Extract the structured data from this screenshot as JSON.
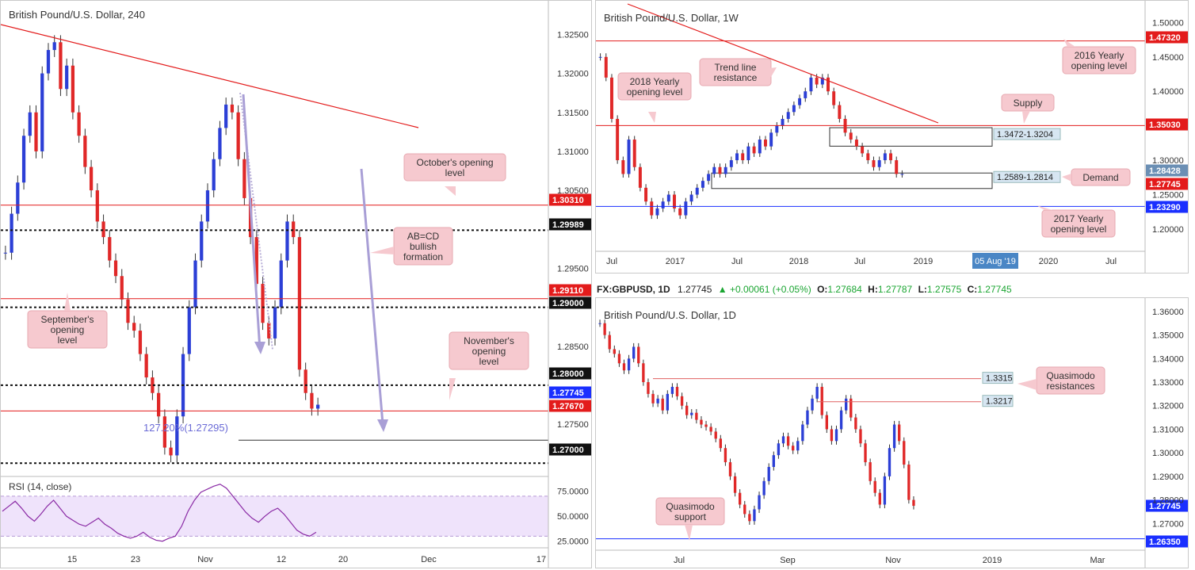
{
  "panels": {
    "left": {
      "title": "British Pound/U.S. Dollar, 240",
      "x_ticks": [
        "15",
        "23",
        "Nov",
        "12",
        "20",
        "Dec",
        "17"
      ],
      "y_ticks": [
        "1.32500",
        "1.32000",
        "1.31500",
        "1.31000",
        "1.30500",
        "1.29500",
        "1.28500",
        "1.27500"
      ],
      "price_tags": [
        {
          "label": "1.30310",
          "color": "#e31b1b"
        },
        {
          "label": "1.29989",
          "color": "#111111"
        },
        {
          "label": "1.29110",
          "color": "#e31b1b"
        },
        {
          "label": "1.29000",
          "color": "#111111"
        },
        {
          "label": "1.28000",
          "color": "#111111"
        },
        {
          "label": "1.27745",
          "color": "#1a2fff"
        },
        {
          "label": "1.27670",
          "color": "#e31b1b"
        },
        {
          "label": "1.27000",
          "color": "#111111"
        }
      ],
      "annotations": {
        "octobers_opening": "October's opening level",
        "abcd": "AB=CD bullish formation",
        "septembers_opening": "September's opening level",
        "novembers_opening": "November's opening level",
        "fib_label": "127.20%(1.27295)"
      },
      "rsi": {
        "label": "RSI (14, close)",
        "ticks": [
          "75.0000",
          "50.0000",
          "25.0000"
        ]
      }
    },
    "weekly": {
      "title": "British Pound/U.S. Dollar, 1W",
      "x_ticks": [
        "Jul",
        "2017",
        "Jul",
        "2018",
        "Jul",
        "2019",
        "2020",
        "Jul"
      ],
      "x_highlight": "05 Aug '19",
      "y_ticks": [
        "1.50000",
        "1.45000",
        "1.40000",
        "1.30000",
        "1.25000",
        "1.20000"
      ],
      "price_tags": [
        {
          "label": "1.47320",
          "color": "#e31b1b"
        },
        {
          "label": "1.35030",
          "color": "#e31b1b"
        },
        {
          "label": "1.28428",
          "color": "#6b8fb4"
        },
        {
          "label": "1.27745",
          "color": "#e31b1b"
        },
        {
          "label": "1.23290",
          "color": "#1a2fff"
        }
      ],
      "zones": {
        "supply": "1.3472-1.3204",
        "demand": "1.2589-1.2814"
      },
      "annotations": {
        "trend": "Trend line resistance",
        "y2018": "2018 Yearly opening level",
        "y2016": "2016 Yearly opening level",
        "supply": "Supply",
        "demand": "Demand",
        "y2017": "2017 Yearly opening level"
      }
    },
    "daily": {
      "header": {
        "symbol": "FX:GBPUSD, 1D",
        "last": "1.27745",
        "change": "▲ +0.00061 (+0.05%)",
        "o_label": "O:",
        "o": "1.27684",
        "h_label": "H:",
        "h": "1.27787",
        "l_label": "L:",
        "l": "1.27575",
        "c_label": "C:",
        "c": "1.27745"
      },
      "title": "British Pound/U.S. Dollar, 1D",
      "x_ticks": [
        "Jul",
        "Sep",
        "Nov",
        "2019",
        "Mar"
      ],
      "y_ticks": [
        "1.36000",
        "1.35000",
        "1.34000",
        "1.33000",
        "1.32000",
        "1.31000",
        "1.30000",
        "1.29000",
        "1.28000",
        "1.27000"
      ],
      "price_tags": [
        {
          "label": "1.27745",
          "color": "#1a2fff"
        },
        {
          "label": "1.26350",
          "color": "#1a2fff"
        }
      ],
      "line_labels": {
        "upper": "1.3315",
        "lower": "1.3217"
      },
      "annotations": {
        "qm_res": "Quasimodo resistances",
        "qm_sup": "Quasimodo support"
      }
    }
  },
  "chart_data": [
    {
      "type": "candlestick",
      "title": "British Pound/U.S. Dollar, 240",
      "ylim": [
        1.2685,
        1.3285
      ],
      "close_series": [
        1.297,
        1.302,
        1.306,
        1.312,
        1.315,
        1.31,
        1.32,
        1.323,
        1.324,
        1.318,
        1.321,
        1.315,
        1.312,
        1.308,
        1.305,
        1.301,
        1.299,
        1.296,
        1.294,
        1.291,
        1.288,
        1.287,
        1.284,
        1.281,
        1.279,
        1.276,
        1.272,
        1.271,
        1.276,
        1.284,
        1.29,
        1.296,
        1.301,
        1.305,
        1.309,
        1.313,
        1.316,
        1.315,
        1.309,
        1.304,
        1.299,
        1.293,
        1.288,
        1.286,
        1.29,
        1.296,
        1.301,
        1.299,
        1.282,
        1.279,
        1.277,
        1.2775
      ],
      "levels": [
        {
          "label": "October's opening level",
          "value": 1.3031
        },
        {
          "value": 1.29989
        },
        {
          "label": "September's opening level",
          "value": 1.2911
        },
        {
          "value": 1.29
        },
        {
          "value": 1.28
        },
        {
          "value": 1.2774
        },
        {
          "label": "November's opening level",
          "value": 1.2767
        },
        {
          "label": "127.20%(1.27295)",
          "value": 1.27295
        },
        {
          "value": 1.27
        }
      ],
      "rsi": {
        "ylim": [
          20,
          85
        ],
        "bands": [
          70,
          30
        ],
        "values": [
          55,
          60,
          65,
          58,
          50,
          45,
          52,
          60,
          66,
          58,
          50,
          46,
          42,
          40,
          44,
          48,
          42,
          38,
          33,
          30,
          28,
          30,
          34,
          29,
          26,
          25,
          28,
          30,
          40,
          55,
          66,
          74,
          77,
          80,
          82,
          78,
          70,
          62,
          54,
          48,
          44,
          50,
          55,
          58,
          52,
          44,
          36,
          32,
          30,
          34
        ]
      }
    },
    {
      "type": "candlestick",
      "title": "British Pound/U.S. Dollar, 1W",
      "ylim": [
        1.17,
        1.52
      ],
      "close_series": [
        1.45,
        1.42,
        1.36,
        1.3,
        1.28,
        1.33,
        1.29,
        1.26,
        1.24,
        1.22,
        1.23,
        1.24,
        1.25,
        1.23,
        1.22,
        1.24,
        1.25,
        1.26,
        1.27,
        1.28,
        1.29,
        1.28,
        1.29,
        1.3,
        1.31,
        1.3,
        1.32,
        1.31,
        1.33,
        1.32,
        1.34,
        1.35,
        1.36,
        1.37,
        1.38,
        1.39,
        1.4,
        1.42,
        1.41,
        1.42,
        1.4,
        1.38,
        1.36,
        1.34,
        1.33,
        1.32,
        1.31,
        1.3,
        1.29,
        1.3,
        1.31,
        1.3,
        1.28,
        1.28
      ],
      "levels": [
        {
          "label": "2016 Yearly opening level",
          "value": 1.4732
        },
        {
          "label": "2018 Yearly opening level",
          "value": 1.3503
        },
        {
          "label": "2017 Yearly opening level",
          "value": 1.2329
        }
      ],
      "zones": [
        {
          "label": "Supply",
          "range": [
            1.3204,
            1.3472
          ]
        },
        {
          "label": "Demand",
          "range": [
            1.2589,
            1.2814
          ]
        }
      ]
    },
    {
      "type": "candlestick",
      "title": "British Pound/U.S. Dollar, 1D",
      "ylim": [
        1.26,
        1.363
      ],
      "close_series": [
        1.355,
        1.35,
        1.344,
        1.342,
        1.338,
        1.335,
        1.34,
        1.345,
        1.338,
        1.33,
        1.325,
        1.321,
        1.323,
        1.318,
        1.325,
        1.328,
        1.324,
        1.32,
        1.316,
        1.317,
        1.314,
        1.312,
        1.311,
        1.309,
        1.306,
        1.302,
        1.296,
        1.29,
        1.283,
        1.278,
        1.274,
        1.271,
        1.276,
        1.282,
        1.288,
        1.294,
        1.299,
        1.304,
        1.307,
        1.303,
        1.301,
        1.305,
        1.312,
        1.318,
        1.323,
        1.328,
        1.316,
        1.31,
        1.305,
        1.31,
        1.318,
        1.323,
        1.315,
        1.31,
        1.304,
        1.296,
        1.288,
        1.283,
        1.278,
        1.29,
        1.302,
        1.312,
        1.305,
        1.295,
        1.28,
        1.2775
      ],
      "levels": [
        {
          "label": "Quasimodo resistances",
          "value": 1.3315
        },
        {
          "label": "Quasimodo resistances",
          "value": 1.3217
        },
        {
          "label": "Quasimodo support",
          "value": 1.2635
        }
      ]
    }
  ]
}
